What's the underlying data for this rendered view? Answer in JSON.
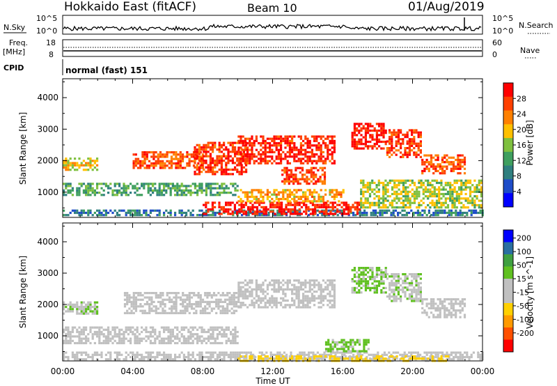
{
  "header": {
    "station": "Hokkaido East (fitACF)",
    "beam": "Beam 10",
    "date": "01/Aug/2019"
  },
  "noise_panel": {
    "left_label": "N.Sky",
    "right_label": "N.Search",
    "ticks": [
      "10^5",
      "10^0"
    ]
  },
  "freq_panel": {
    "left_label_1": "Freq.",
    "left_label_2": "[MHz]",
    "left_ticks": [
      "18",
      "8"
    ],
    "right_label": "Nave",
    "right_ticks": [
      "60",
      "0"
    ]
  },
  "cpid": {
    "label": "CPID",
    "value": "normal (fast) 151"
  },
  "axes": {
    "xlabel": "Time UT",
    "ylabel": "Slant Range [km]"
  },
  "colors": {
    "power": [
      "#0000ff",
      "#1e4cc8",
      "#2f7f7f",
      "#3f9f5f",
      "#7fc03f",
      "#ffc000",
      "#ff8000",
      "#ff4000",
      "#ff0000"
    ],
    "velocity": [
      "#ff0000",
      "#ff5000",
      "#ff9a00",
      "#ffd000",
      "#c0c0c0",
      "#c0c0c0",
      "#60c020",
      "#3fa040",
      "#2a6fa0",
      "#0000ff"
    ]
  },
  "chart_data": [
    {
      "type": "heatmap",
      "ylabel": "Slant Range [km]",
      "xlabel": "Time UT",
      "x_ticks": [
        "00:00",
        "04:00",
        "08:00",
        "12:00",
        "16:00",
        "20:00",
        "00:00"
      ],
      "y_ticks": [
        "1000",
        "2000",
        "3000",
        "4000"
      ],
      "ylim": [
        200,
        4600
      ],
      "colorbar": {
        "label": "Power [dB]",
        "ticks": [
          "4",
          "8",
          "12",
          "16",
          "20",
          "24",
          "28"
        ],
        "range": [
          0,
          30
        ]
      },
      "regions": [
        {
          "t0": 0.0,
          "t1": 24.0,
          "r0": 250,
          "r1": 450,
          "value": 8
        },
        {
          "t0": 0.0,
          "t1": 10.0,
          "r0": 900,
          "r1": 1300,
          "value": 12
        },
        {
          "t0": 0.0,
          "t1": 2.0,
          "r0": 1700,
          "r1": 2100,
          "value": 18
        },
        {
          "t0": 4.0,
          "t1": 8.0,
          "r0": 1800,
          "r1": 2300,
          "value": 24
        },
        {
          "t0": 7.5,
          "t1": 10.5,
          "r0": 1600,
          "r1": 2600,
          "value": 26
        },
        {
          "t0": 10.0,
          "t1": 15.5,
          "r0": 1900,
          "r1": 2800,
          "value": 27
        },
        {
          "t0": 12.5,
          "t1": 15.0,
          "r0": 1300,
          "r1": 1800,
          "value": 25
        },
        {
          "t0": 16.5,
          "t1": 18.5,
          "r0": 2400,
          "r1": 3200,
          "value": 28
        },
        {
          "t0": 18.5,
          "t1": 20.5,
          "r0": 2100,
          "r1": 3000,
          "value": 26
        },
        {
          "t0": 20.5,
          "t1": 23.0,
          "r0": 1600,
          "r1": 2200,
          "value": 24
        },
        {
          "t0": 8.0,
          "t1": 17.0,
          "r0": 300,
          "r1": 700,
          "value": 28
        },
        {
          "t0": 10.0,
          "t1": 16.0,
          "r0": 700,
          "r1": 1100,
          "value": 20
        },
        {
          "t0": 17.0,
          "t1": 24.0,
          "r0": 500,
          "r1": 1400,
          "value": 16
        }
      ]
    },
    {
      "type": "heatmap",
      "ylabel": "Slant Range [km]",
      "xlabel": "Time UT",
      "x_ticks": [
        "00:00",
        "04:00",
        "08:00",
        "12:00",
        "16:00",
        "20:00",
        "00:00"
      ],
      "y_ticks": [
        "1000",
        "2000",
        "3000",
        "4000"
      ],
      "ylim": [
        200,
        4600
      ],
      "colorbar": {
        "label": "Velocity [m s^-1]",
        "ticks": [
          "200",
          "100",
          "50",
          "15",
          "-15",
          "-50",
          "-100",
          "-200"
        ],
        "range": [
          -250,
          250
        ]
      },
      "regions": [
        {
          "t0": 0.0,
          "t1": 24.0,
          "r0": 250,
          "r1": 500,
          "value": 0
        },
        {
          "t0": 0.0,
          "t1": 10.0,
          "r0": 800,
          "r1": 1300,
          "value": 0
        },
        {
          "t0": 0.0,
          "t1": 2.0,
          "r0": 1700,
          "r1": 2100,
          "value": 40
        },
        {
          "t0": 3.5,
          "t1": 10.0,
          "r0": 1700,
          "r1": 2400,
          "value": 0
        },
        {
          "t0": 10.0,
          "t1": 15.5,
          "r0": 1900,
          "r1": 2800,
          "value": 10
        },
        {
          "t0": 16.5,
          "t1": 18.5,
          "r0": 2400,
          "r1": 3200,
          "value": 60
        },
        {
          "t0": 18.5,
          "t1": 20.5,
          "r0": 2100,
          "r1": 3000,
          "value": 40
        },
        {
          "t0": 20.5,
          "t1": 23.0,
          "r0": 1600,
          "r1": 2200,
          "value": 0
        },
        {
          "t0": 15.0,
          "t1": 17.5,
          "r0": 500,
          "r1": 900,
          "value": 60
        },
        {
          "t0": 10.0,
          "t1": 22.0,
          "r0": 200,
          "r1": 380,
          "value": -60
        }
      ]
    }
  ]
}
